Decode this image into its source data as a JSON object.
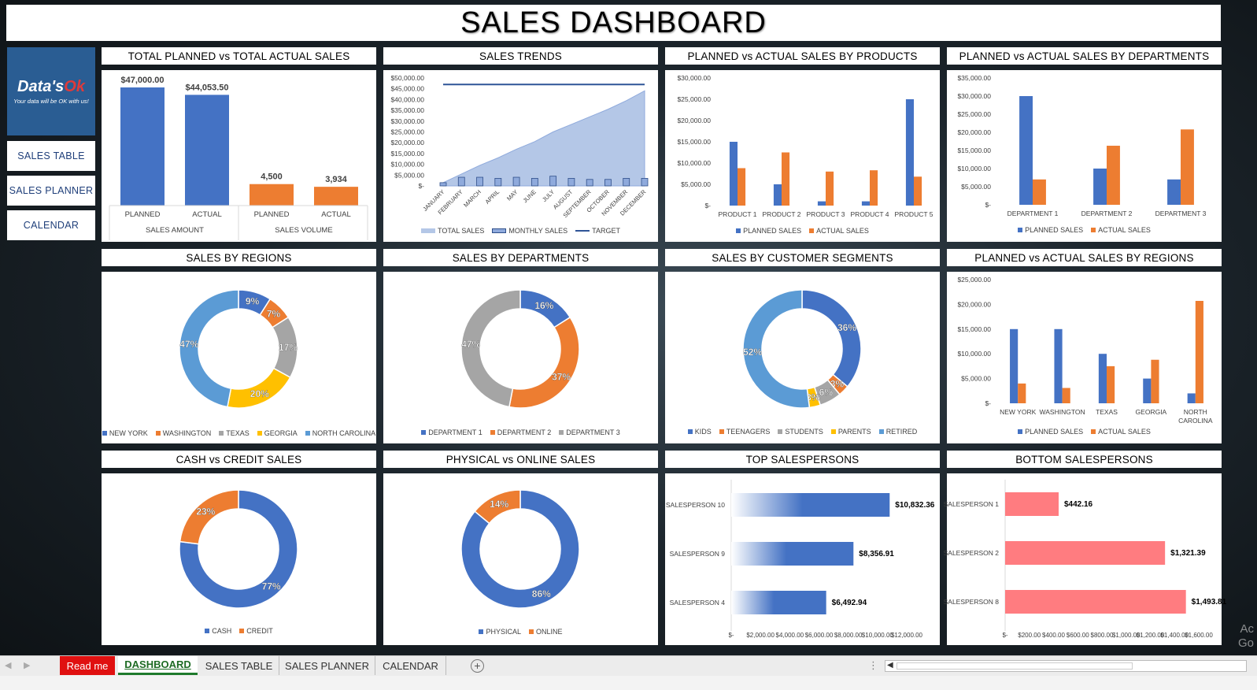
{
  "header": {
    "title": "SALES DASHBOARD"
  },
  "logo": {
    "brand_prefix": "Data's",
    "brand_suffix": "Ok",
    "tagline": "Your data will be OK with us!"
  },
  "nav": {
    "sales_table": "SALES TABLE",
    "sales_planner": "SALES PLANNER",
    "calendar": "CALENDAR"
  },
  "panels": {
    "total": "TOTAL PLANNED vs TOTAL ACTUAL SALES",
    "trends": "SALES TRENDS",
    "products": "PLANNED vs ACTUAL SALES BY PRODUCTS",
    "departments": "PLANNED vs ACTUAL SALES BY DEPARTMENTS",
    "regions_donut": "SALES BY REGIONS",
    "depts_donut": "SALES BY DEPARTMENTS",
    "segments": "SALES BY CUSTOMER SEGMENTS",
    "regions_bar": "PLANNED vs ACTUAL SALES BY REGIONS",
    "cash": "CASH vs CREDIT SALES",
    "physical": "PHYSICAL vs ONLINE SALES",
    "top": "TOP SALESPERSONS",
    "bottom": "BOTTOM SALESPERSONS"
  },
  "colors": {
    "blue": "#4472c4",
    "orange": "#ed7d31",
    "gray": "#a5a5a5",
    "yellow": "#ffc000",
    "lightblue": "#5b9bd5",
    "pink": "#ff7c80",
    "area": "#b4c7e7"
  },
  "chart_data": [
    {
      "id": "total",
      "type": "bar",
      "groups": [
        {
          "name": "SALES AMOUNT",
          "categories": [
            "PLANNED",
            "ACTUAL"
          ],
          "values": [
            47000.0,
            44053.5
          ],
          "labels": [
            "$47,000.00",
            "$44,053.50"
          ],
          "color": "#4472c4"
        },
        {
          "name": "SALES VOLUME",
          "categories": [
            "PLANNED",
            "ACTUAL"
          ],
          "values": [
            4500,
            3934
          ],
          "labels": [
            "4,500",
            "3,934"
          ],
          "color": "#ed7d31"
        }
      ]
    },
    {
      "id": "trends",
      "type": "line",
      "categories": [
        "JANUARY",
        "FEBRUARY",
        "MARCH",
        "APRIL",
        "MAY",
        "JUNE",
        "JULY",
        "AUGUST",
        "SEPTEMBER",
        "OCTOBER",
        "NOVEMBER",
        "DECEMBER"
      ],
      "series": [
        {
          "name": "TOTAL SALES",
          "kind": "area",
          "values": [
            1500,
            5500,
            9500,
            13000,
            17000,
            20500,
            25000,
            28500,
            32000,
            35500,
            39500,
            44053.5
          ]
        },
        {
          "name": "MONTHLY SALES",
          "kind": "bar",
          "values": [
            1500,
            4000,
            4000,
            3500,
            4000,
            3500,
            4500,
            3500,
            3000,
            3000,
            3500,
            3500
          ]
        },
        {
          "name": "TARGET",
          "kind": "line",
          "values": [
            47000,
            47000,
            47000,
            47000,
            47000,
            47000,
            47000,
            47000,
            47000,
            47000,
            47000,
            47000
          ]
        }
      ],
      "yticks": [
        "$50,000.00",
        "$45,000.00",
        "$40,000.00",
        "$35,000.00",
        "$30,000.00",
        "$25,000.00",
        "$20,000.00",
        "$15,000.00",
        "$10,000.00",
        "$5,000.00",
        "$-"
      ],
      "ylim": [
        0,
        50000
      ]
    },
    {
      "id": "products",
      "type": "bar",
      "categories": [
        "PRODUCT 1",
        "PRODUCT 2",
        "PRODUCT 3",
        "PRODUCT 4",
        "PRODUCT 5"
      ],
      "series": [
        {
          "name": "PLANNED SALES",
          "values": [
            15000,
            5000,
            1000,
            1000,
            25000
          ]
        },
        {
          "name": "ACTUAL SALES",
          "values": [
            8800,
            12500,
            8000,
            8300,
            6800
          ]
        }
      ],
      "yticks": [
        "$30,000.00",
        "$25,000.00",
        "$20,000.00",
        "$15,000.00",
        "$10,000.00",
        "$5,000.00",
        "$-"
      ],
      "ylim": [
        0,
        30000
      ]
    },
    {
      "id": "departments",
      "type": "bar",
      "categories": [
        "DEPARTMENT 1",
        "DEPARTMENT 2",
        "DEPARTMENT 3"
      ],
      "series": [
        {
          "name": "PLANNED SALES",
          "values": [
            30000,
            10000,
            7000
          ]
        },
        {
          "name": "ACTUAL SALES",
          "values": [
            7000,
            16300,
            20800
          ]
        }
      ],
      "yticks": [
        "$35,000.00",
        "$30,000.00",
        "$25,000.00",
        "$20,000.00",
        "$15,000.00",
        "$10,000.00",
        "$5,000.00",
        "$-"
      ],
      "ylim": [
        0,
        35000
      ]
    },
    {
      "id": "regions_donut",
      "type": "pie",
      "labels": [
        "NEW YORK",
        "WASHINGTON",
        "TEXAS",
        "GEORGIA",
        "NORTH CAROLINA"
      ],
      "values": [
        9,
        7,
        17,
        20,
        47
      ],
      "colors": [
        "#4472c4",
        "#ed7d31",
        "#a5a5a5",
        "#ffc000",
        "#5b9bd5"
      ]
    },
    {
      "id": "depts_donut",
      "type": "pie",
      "labels": [
        "DEPARTMENT 1",
        "DEPARTMENT 2",
        "DEPARTMENT 3"
      ],
      "values": [
        16,
        37,
        47
      ],
      "colors": [
        "#4472c4",
        "#ed7d31",
        "#a5a5a5"
      ]
    },
    {
      "id": "segments",
      "type": "pie",
      "labels": [
        "KIDS",
        "TEENAGERS",
        "STUDENTS",
        "PARENTS",
        "RETIRED"
      ],
      "values": [
        36,
        3,
        6,
        3,
        52
      ],
      "colors": [
        "#4472c4",
        "#ed7d31",
        "#a5a5a5",
        "#ffc000",
        "#5b9bd5"
      ]
    },
    {
      "id": "regions_bar",
      "type": "bar",
      "categories": [
        "NEW YORK",
        "WASHINGTON",
        "TEXAS",
        "GEORGIA",
        "NORTH CAROLINA"
      ],
      "series": [
        {
          "name": "PLANNED SALES",
          "values": [
            15000,
            15000,
            10000,
            5000,
            2000
          ]
        },
        {
          "name": "ACTUAL SALES",
          "values": [
            4000,
            3100,
            7500,
            8800,
            20700
          ]
        }
      ],
      "yticks": [
        "$25,000.00",
        "$20,000.00",
        "$15,000.00",
        "$10,000.00",
        "$5,000.00",
        "$-"
      ],
      "ylim": [
        0,
        25000
      ]
    },
    {
      "id": "cash",
      "type": "pie",
      "labels": [
        "CASH",
        "CREDIT"
      ],
      "values": [
        77,
        23
      ],
      "colors": [
        "#4472c4",
        "#ed7d31"
      ]
    },
    {
      "id": "physical",
      "type": "pie",
      "labels": [
        "PHYSICAL",
        "ONLINE"
      ],
      "values": [
        86,
        14
      ],
      "colors": [
        "#4472c4",
        "#ed7d31"
      ]
    },
    {
      "id": "top",
      "type": "bar",
      "categories": [
        "SALESPERSON 10",
        "SALESPERSON 9",
        "SALESPERSON 4"
      ],
      "values": [
        10832.36,
        8356.91,
        6492.94
      ],
      "labels": [
        "$10,832.36",
        "$8,356.91",
        "$6,492.94"
      ],
      "xticks": [
        "$-",
        "$2,000.00",
        "$4,000.00",
        "$6,000.00",
        "$8,000.00",
        "$10,000.00",
        "$12,000.00"
      ],
      "xlim": [
        0,
        12000
      ]
    },
    {
      "id": "bottom",
      "type": "bar",
      "categories": [
        "SALESPERSON 1",
        "SALESPERSON 2",
        "SALESPERSON 8"
      ],
      "values": [
        442.16,
        1321.39,
        1493.81
      ],
      "labels": [
        "$442.16",
        "$1,321.39",
        "$1,493.81"
      ],
      "xticks": [
        "$-",
        "$200.00",
        "$400.00",
        "$600.00",
        "$800.00",
        "$1,000.00",
        "$1,200.00",
        "$1,400.00",
        "$1,600.00"
      ],
      "xlim": [
        0,
        1600
      ]
    }
  ],
  "sheet_tabs": {
    "readme": "Read me",
    "dashboard": "DASHBOARD",
    "sales_table": "SALES TABLE",
    "sales_planner": "SALES PLANNER",
    "calendar": "CALENDAR"
  },
  "watermark": {
    "line1": "Ac",
    "line2": "Go"
  }
}
